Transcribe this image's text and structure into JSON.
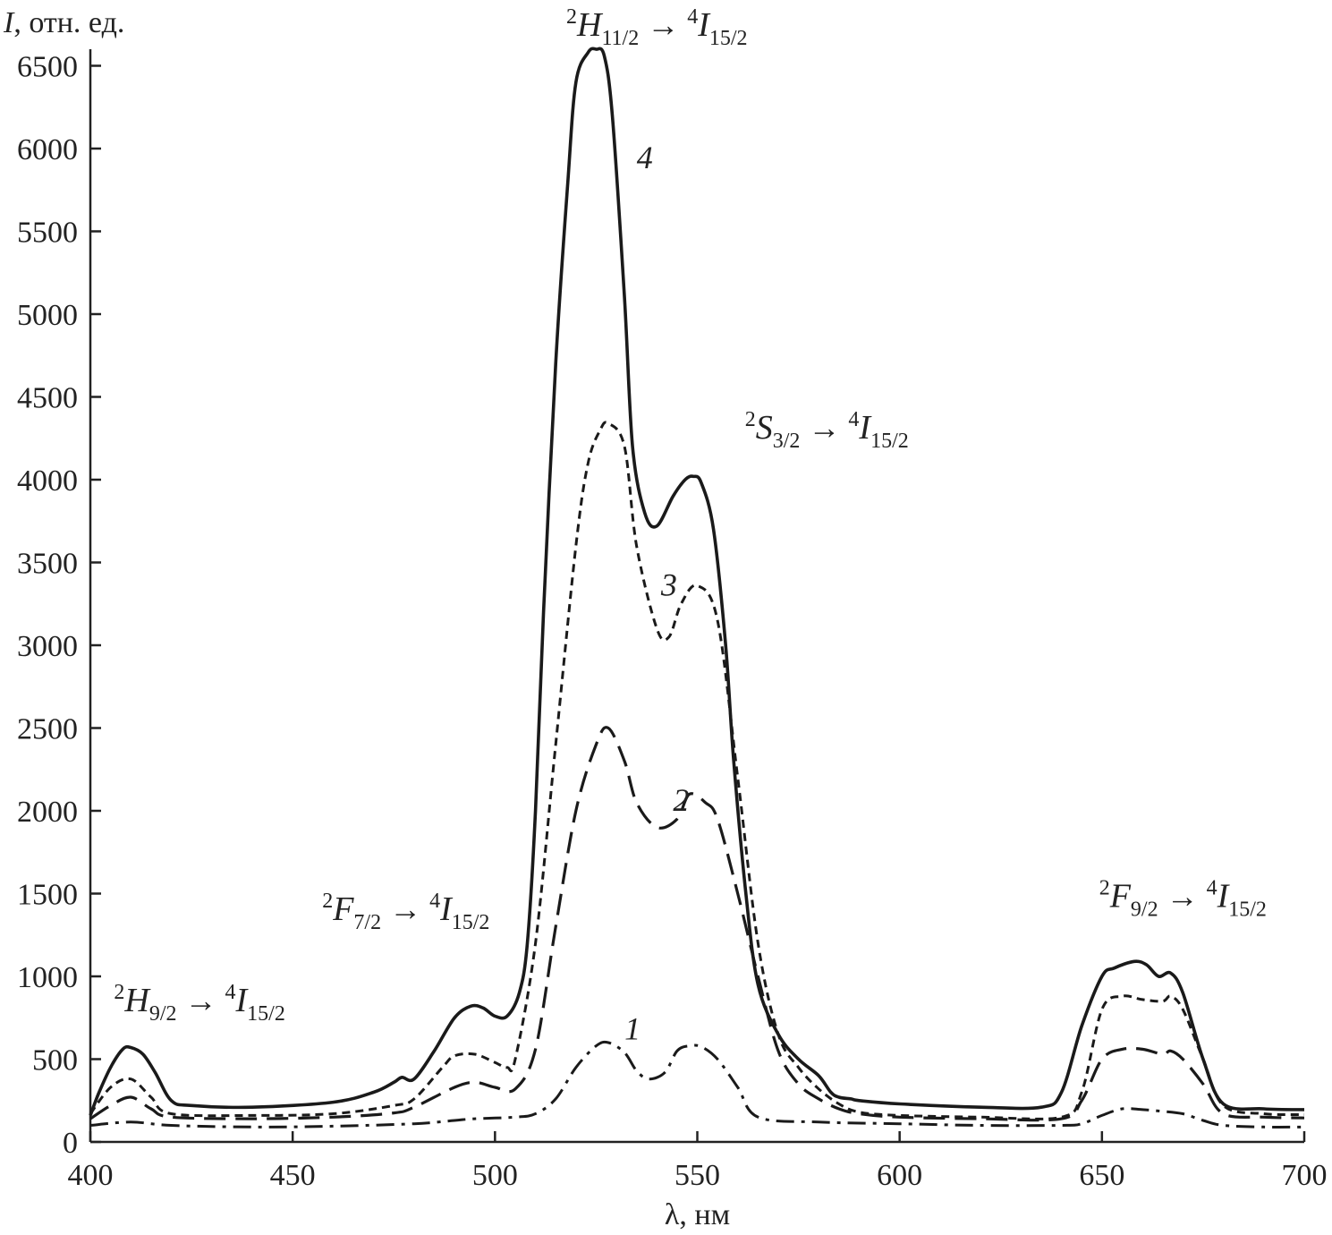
{
  "chart_data": {
    "type": "line",
    "title": "",
    "xlabel": "λ, нм",
    "ylabel": {
      "symbol": "I",
      "rest": ", отн. ед."
    },
    "xlim": [
      400,
      700
    ],
    "ylim": [
      0,
      6800
    ],
    "xticks": [
      400,
      450,
      500,
      550,
      600,
      650,
      700
    ],
    "yticks": [
      0,
      500,
      1000,
      1500,
      2000,
      2500,
      3000,
      3500,
      4000,
      4500,
      5000,
      5500,
      6000,
      6500
    ],
    "grid": false,
    "legend": "none",
    "series": [
      {
        "label": "1",
        "style": "dash-dot",
        "x": [
          400,
          410,
          420,
          440,
          460,
          480,
          490,
          495,
          505,
          510,
          515,
          520,
          525,
          528,
          532,
          535,
          538,
          542,
          545,
          548,
          551,
          555,
          560,
          565,
          580,
          600,
          620,
          640,
          645,
          650,
          655,
          660,
          665,
          670,
          675,
          680,
          690,
          700
        ],
        "y": [
          100,
          120,
          100,
          90,
          95,
          110,
          130,
          140,
          150,
          170,
          260,
          450,
          580,
          600,
          540,
          430,
          380,
          420,
          550,
          580,
          575,
          500,
          330,
          150,
          120,
          110,
          100,
          100,
          110,
          160,
          200,
          195,
          185,
          170,
          130,
          100,
          90,
          90
        ]
      },
      {
        "label": "2",
        "style": "dashed",
        "x": [
          400,
          405,
          410,
          415,
          420,
          440,
          460,
          475,
          480,
          490,
          495,
          500,
          505,
          510,
          515,
          520,
          525,
          528,
          532,
          535,
          540,
          545,
          548,
          552,
          555,
          560,
          565,
          570,
          575,
          580,
          585,
          590,
          600,
          620,
          640,
          645,
          650,
          655,
          660,
          665,
          667,
          670,
          675,
          680,
          690,
          700
        ],
        "y": [
          140,
          220,
          270,
          200,
          150,
          140,
          150,
          175,
          210,
          330,
          360,
          330,
          320,
          560,
          1300,
          2000,
          2400,
          2500,
          2300,
          2050,
          1900,
          1950,
          2100,
          2050,
          1950,
          1500,
          1000,
          550,
          350,
          260,
          200,
          170,
          150,
          140,
          140,
          250,
          500,
          560,
          560,
          530,
          550,
          500,
          350,
          170,
          150,
          145
        ]
      },
      {
        "label": "3",
        "style": "dotted",
        "x": [
          400,
          405,
          410,
          415,
          420,
          440,
          460,
          475,
          480,
          487,
          490,
          495,
          500,
          503,
          505,
          510,
          515,
          520,
          523,
          526,
          528,
          532,
          535,
          540,
          543,
          546,
          550,
          555,
          560,
          565,
          570,
          575,
          580,
          585,
          590,
          600,
          620,
          640,
          645,
          650,
          655,
          660,
          665,
          667,
          670,
          675,
          680,
          690,
          700
        ],
        "y": [
          170,
          330,
          380,
          270,
          170,
          160,
          170,
          220,
          260,
          450,
          520,
          530,
          480,
          450,
          500,
          1200,
          2400,
          3600,
          4100,
          4300,
          4340,
          4200,
          3600,
          3100,
          3050,
          3250,
          3360,
          3150,
          2200,
          1200,
          650,
          450,
          320,
          230,
          180,
          160,
          150,
          150,
          300,
          800,
          880,
          860,
          850,
          880,
          800,
          500,
          220,
          170,
          165
        ]
      },
      {
        "label": "4",
        "style": "solid",
        "x": [
          400,
          402,
          405,
          408,
          410,
          413,
          416,
          420,
          425,
          440,
          460,
          470,
          475,
          477,
          480,
          485,
          490,
          494,
          497,
          500,
          503,
          506,
          508,
          510,
          512,
          515,
          518,
          520,
          523,
          525,
          527,
          529,
          532,
          534,
          537,
          540,
          544,
          547,
          549,
          551,
          554,
          557,
          559,
          562,
          565,
          570,
          575,
          580,
          583,
          585,
          588,
          590,
          600,
          620,
          635,
          640,
          645,
          650,
          653,
          658,
          661,
          664,
          667,
          670,
          675,
          680,
          690,
          700
        ],
        "y": [
          160,
          290,
          450,
          560,
          570,
          530,
          420,
          250,
          220,
          210,
          240,
          300,
          360,
          390,
          380,
          550,
          750,
          820,
          810,
          760,
          760,
          900,
          1200,
          2000,
          3200,
          4700,
          5800,
          6400,
          6580,
          6600,
          6560,
          6200,
          5100,
          4200,
          3800,
          3720,
          3900,
          4000,
          4020,
          3980,
          3700,
          3000,
          2300,
          1500,
          950,
          650,
          500,
          400,
          300,
          270,
          260,
          250,
          230,
          210,
          210,
          300,
          700,
          1000,
          1050,
          1090,
          1070,
          1000,
          1020,
          900,
          500,
          230,
          200,
          195
        ]
      }
    ],
    "curve_labels": [
      {
        "text": "1",
        "x": 534,
        "y": 620
      },
      {
        "text": "2",
        "x": 546,
        "y": 2000
      },
      {
        "text": "3",
        "x": 543,
        "y": 3300
      },
      {
        "text": "4",
        "x": 537,
        "y": 5880
      }
    ],
    "transitions": [
      {
        "from_sym": "H",
        "from_sup": "2",
        "from_sub": "11/2",
        "to_sym": "I",
        "to_sup": "4",
        "to_sub": "15/2",
        "x": 540,
        "y": 6680
      },
      {
        "from_sym": "S",
        "from_sup": "2",
        "from_sub": "3/2",
        "to_sym": "I",
        "to_sup": "4",
        "to_sub": "15/2",
        "x": 582,
        "y": 4250
      },
      {
        "from_sym": "F",
        "from_sup": "2",
        "from_sub": "7/2",
        "to_sym": "I",
        "to_sup": "4",
        "to_sub": "15/2",
        "x": 478,
        "y": 1340
      },
      {
        "from_sym": "H",
        "from_sup": "2",
        "from_sub": "9/2",
        "to_sym": "I",
        "to_sup": "4",
        "to_sub": "15/2",
        "x": 427,
        "y": 790
      },
      {
        "from_sym": "F",
        "from_sup": "2",
        "from_sub": "9/2",
        "to_sym": "I",
        "to_sup": "4",
        "to_sub": "15/2",
        "x": 670,
        "y": 1420
      }
    ]
  }
}
